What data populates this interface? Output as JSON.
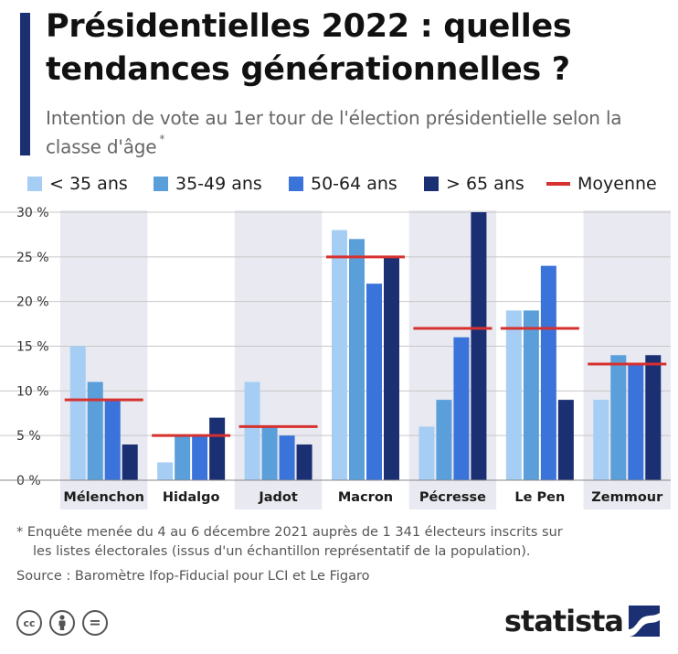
{
  "header": {
    "title": "Présidentielles 2022 : quelles tendances générationnelles ?",
    "subtitle": "Intention de vote au 1er tour de l'élection présidentielle selon la classe d'âge",
    "subtitle_mark": "*"
  },
  "legend": {
    "items": [
      {
        "label": "< 35 ans",
        "color": "#a6cdf3"
      },
      {
        "label": "35-49 ans",
        "color": "#5a9fd9"
      },
      {
        "label": "50-64 ans",
        "color": "#3a73d9"
      },
      {
        "label": "> 65 ans",
        "color": "#1b2f73"
      },
      {
        "label": "Moyenne",
        "color": "#d6312e",
        "kind": "line"
      }
    ]
  },
  "chart_data": {
    "type": "bar",
    "categories": [
      "Mélenchon",
      "Hidalgo",
      "Jadot",
      "Macron",
      "Pécresse",
      "Le Pen",
      "Zemmour"
    ],
    "series": [
      {
        "name": "< 35 ans",
        "values": [
          15,
          2,
          11,
          28,
          6,
          19,
          9
        ],
        "color": "#a6cdf3"
      },
      {
        "name": "35-49 ans",
        "values": [
          11,
          5,
          6,
          27,
          9,
          19,
          14
        ],
        "color": "#5a9fd9"
      },
      {
        "name": "50-64 ans",
        "values": [
          9,
          5,
          5,
          22,
          16,
          24,
          13
        ],
        "color": "#3a73d9"
      },
      {
        "name": "> 65 ans",
        "values": [
          4,
          7,
          4,
          25,
          30,
          9,
          14
        ],
        "color": "#1b2f73"
      }
    ],
    "average": {
      "name": "Moyenne",
      "values": [
        9,
        5,
        6,
        25,
        17,
        17,
        13
      ],
      "color": "#d6312e"
    },
    "ylim": [
      0,
      30
    ],
    "yticks": [
      0,
      5,
      10,
      15,
      20,
      25,
      30
    ],
    "ytick_labels": [
      "0 %",
      "5 %",
      "10 %",
      "15 %",
      "20 %",
      "25 %",
      "30 %"
    ],
    "grid": true,
    "alternate_band_color": "#e9eaf1",
    "legend_position": "top"
  },
  "footer": {
    "note_line1": "* Enquête menée du 4 au 6 décembre 2021 auprès de 1 341 électeurs inscrits sur",
    "note_line2": "les listes électorales (issus d'un échantillon représentatif de la population).",
    "source": "Source : Baromètre Ifop-Fiducial pour LCI et Le Figaro",
    "license_icons": [
      "cc-icon",
      "attribution-icon",
      "no-derivatives-icon"
    ],
    "license_text": {
      "cc": "cc",
      "nd": "="
    },
    "brand": "statista"
  }
}
